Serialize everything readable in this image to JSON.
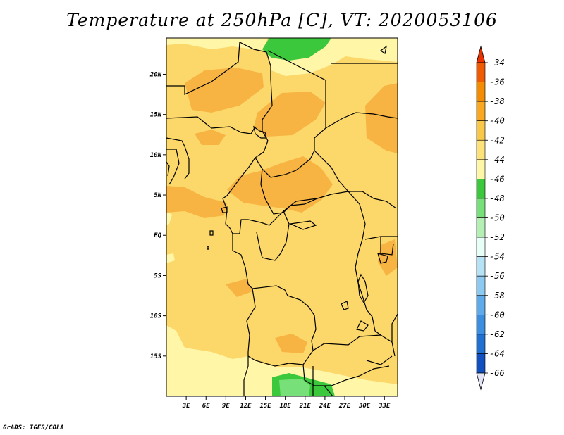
{
  "title": "Temperature at 250hPa [C], VT: 2020053106",
  "credit": "GrADS: IGES/COLA",
  "map": {
    "lon_range": [
      0,
      35
    ],
    "lat_range": [
      -20,
      24.5
    ],
    "lat_ticks": [
      "20N",
      "15N",
      "10N",
      "5N",
      "EQ",
      "5S",
      "10S",
      "15S"
    ],
    "lon_ticks": [
      "3E",
      "6E",
      "9E",
      "12E",
      "15E",
      "18E",
      "21E",
      "24E",
      "27E",
      "30E",
      "33E"
    ]
  },
  "colors": {
    "c42": "#fff6a8",
    "c40": "#fcd86a",
    "c38": "#f7b443",
    "c44": "#3cc83c",
    "c46": "#78e078",
    "border": "#000000"
  },
  "legend": {
    "labels": [
      "-34",
      "-36",
      "-38",
      "-40",
      "-42",
      "-44",
      "-46",
      "-48",
      "-50",
      "-52",
      "-54",
      "-56",
      "-58",
      "-60",
      "-62",
      "-64",
      "-66"
    ],
    "colors": [
      "#f05a00",
      "#f58b00",
      "#f9a820",
      "#fac848",
      "#fde27a",
      "#fff6a8",
      "#3cc83c",
      "#78e078",
      "#b4f0b4",
      "#e8fff8",
      "#b6e2f6",
      "#8ccaf2",
      "#5eaaea",
      "#3c8ee0",
      "#2070d4",
      "#1050c0",
      "#00187a"
    ],
    "top_arrow_color": "#e83200",
    "bottom_arrow_color": "#e4e4f8"
  }
}
